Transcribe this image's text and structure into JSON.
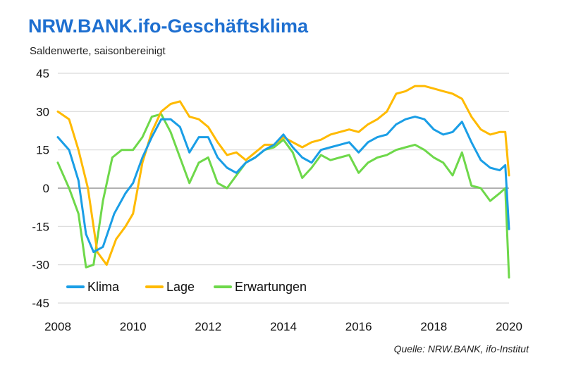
{
  "title": "NRW.BANK.ifo-Geschäftsklima",
  "subtitle": "Saldenwerte, saisonbereinigt",
  "source": "Quelle:  NRW.BANK, ifo-Institut",
  "colors": {
    "Klima": "#1a9ee6",
    "Lage": "#ffba00",
    "Erwartungen": "#6ed84a",
    "grid": "#d9d9d9",
    "zero": "#a6a6a6"
  },
  "chart_data": {
    "type": "line",
    "xlim": [
      2008,
      2020
    ],
    "ylim": [
      -45,
      45
    ],
    "xticks": [
      2008,
      2010,
      2012,
      2014,
      2016,
      2018,
      2020
    ],
    "yticks": [
      45,
      30,
      15,
      0,
      -15,
      -30,
      -45
    ],
    "grid": true,
    "legend_position": "bottom-left",
    "series": [
      {
        "name": "Klima",
        "x": [
          2008.0,
          2008.3,
          2008.55,
          2008.75,
          2008.95,
          2009.2,
          2009.5,
          2009.8,
          2010.0,
          2010.25,
          2010.5,
          2010.75,
          2011.0,
          2011.25,
          2011.5,
          2011.75,
          2012.0,
          2012.25,
          2012.5,
          2012.75,
          2013.0,
          2013.25,
          2013.5,
          2013.75,
          2014.0,
          2014.25,
          2014.5,
          2014.75,
          2015.0,
          2015.25,
          2015.5,
          2015.75,
          2016.0,
          2016.25,
          2016.5,
          2016.75,
          2017.0,
          2017.25,
          2017.5,
          2017.75,
          2018.0,
          2018.25,
          2018.5,
          2018.75,
          2019.0,
          2019.25,
          2019.5,
          2019.75,
          2019.9,
          2020.0
        ],
        "values": [
          20,
          15,
          3,
          -18,
          -25,
          -23,
          -10,
          -2,
          2,
          12,
          20,
          27,
          27,
          24,
          14,
          20,
          20,
          12,
          8,
          6,
          10,
          12,
          15,
          17,
          21,
          16,
          12,
          10,
          15,
          16,
          17,
          18,
          14,
          18,
          20,
          21,
          25,
          27,
          28,
          27,
          23,
          21,
          22,
          26,
          18,
          11,
          8,
          7,
          9,
          -16
        ]
      },
      {
        "name": "Lage",
        "x": [
          2008.0,
          2008.3,
          2008.55,
          2008.8,
          2009.05,
          2009.3,
          2009.55,
          2009.8,
          2010.0,
          2010.25,
          2010.5,
          2010.75,
          2011.0,
          2011.25,
          2011.5,
          2011.75,
          2012.0,
          2012.25,
          2012.5,
          2012.75,
          2013.0,
          2013.25,
          2013.5,
          2013.75,
          2014.0,
          2014.25,
          2014.5,
          2014.75,
          2015.0,
          2015.25,
          2015.5,
          2015.75,
          2016.0,
          2016.25,
          2016.5,
          2016.75,
          2017.0,
          2017.25,
          2017.5,
          2017.75,
          2018.0,
          2018.25,
          2018.5,
          2018.75,
          2019.0,
          2019.25,
          2019.5,
          2019.75,
          2019.9,
          2020.0
        ],
        "values": [
          30,
          27,
          15,
          0,
          -25,
          -30,
          -20,
          -15,
          -10,
          10,
          22,
          30,
          33,
          34,
          28,
          27,
          24,
          18,
          13,
          14,
          11,
          14,
          17,
          17,
          20,
          18,
          16,
          18,
          19,
          21,
          22,
          23,
          22,
          25,
          27,
          30,
          37,
          38,
          40,
          40,
          39,
          38,
          37,
          35,
          28,
          23,
          21,
          22,
          22,
          5
        ]
      },
      {
        "name": "Erwartungen",
        "x": [
          2008.0,
          2008.3,
          2008.55,
          2008.75,
          2008.95,
          2009.2,
          2009.45,
          2009.7,
          2010.0,
          2010.25,
          2010.5,
          2010.75,
          2011.0,
          2011.25,
          2011.5,
          2011.75,
          2012.0,
          2012.25,
          2012.5,
          2012.75,
          2013.0,
          2013.25,
          2013.5,
          2013.75,
          2014.0,
          2014.25,
          2014.5,
          2014.75,
          2015.0,
          2015.25,
          2015.5,
          2015.75,
          2016.0,
          2016.25,
          2016.5,
          2016.75,
          2017.0,
          2017.25,
          2017.5,
          2017.75,
          2018.0,
          2018.25,
          2018.5,
          2018.75,
          2019.0,
          2019.25,
          2019.5,
          2019.75,
          2019.9,
          2020.0
        ],
        "values": [
          10,
          0,
          -10,
          -31,
          -30,
          -5,
          12,
          15,
          15,
          20,
          28,
          29,
          22,
          12,
          2,
          10,
          12,
          2,
          0,
          5,
          10,
          12,
          15,
          16,
          19,
          14,
          4,
          8,
          13,
          11,
          12,
          13,
          6,
          10,
          12,
          13,
          15,
          16,
          17,
          15,
          12,
          10,
          5,
          14,
          1,
          0,
          -5,
          -2,
          0,
          -35
        ]
      }
    ]
  }
}
